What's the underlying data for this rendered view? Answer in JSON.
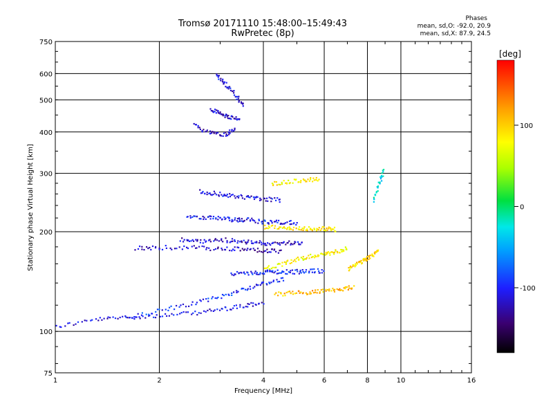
{
  "header": {
    "title_line1": "Tromsø 20171110 15:48:00–15:49:43",
    "title_line2": "RwPretec (8p)"
  },
  "phases": {
    "title": "Phases",
    "mode_o": "mean, sd,O: -92.0, 20.9",
    "mode_x": "mean, sd,X:  87.9, 24.5"
  },
  "colorbar": {
    "unit": "[deg]",
    "ticks": [
      "100",
      "0",
      "-100"
    ],
    "tick_values": [
      100,
      0,
      -100
    ],
    "range": [
      -180,
      180
    ]
  },
  "chart_data": {
    "type": "scatter",
    "title": "Tromsø 20171110 15:48:00–15:49:43",
    "subtitle": "RwPretec (8p)",
    "xlabel": "Frequency [MHz]",
    "ylabel": "Stationary phase Virtual Height [km]",
    "x_scale": "log",
    "y_scale": "log",
    "xlim": [
      1,
      16
    ],
    "ylim": [
      75,
      750
    ],
    "x_ticks": [
      "1",
      "2",
      "4",
      "6",
      "8",
      "10",
      "16"
    ],
    "x_tick_values": [
      1,
      2,
      4,
      6,
      8,
      10,
      16
    ],
    "y_ticks": [
      "750",
      "600",
      "500",
      "400",
      "300",
      "200",
      "100",
      "75"
    ],
    "y_tick_values": [
      750,
      600,
      500,
      400,
      300,
      200,
      100,
      75
    ],
    "grid": true,
    "color_by": "phase [deg]",
    "traces": [
      {
        "x": [
          1.0,
          1.3,
          1.6,
          2.0,
          2.5,
          3.0,
          3.5,
          4.0
        ],
        "y": [
          104,
          109,
          111,
          112,
          114,
          117,
          120,
          123
        ],
        "phase": -110
      },
      {
        "x": [
          1.6,
          2.0,
          2.5,
          3.0,
          3.5,
          4.0,
          4.6
        ],
        "y": [
          110,
          116,
          122,
          128,
          135,
          140,
          145
        ],
        "phase": -95
      },
      {
        "x": [
          1.7,
          2.0,
          2.5,
          3.0,
          3.5,
          4.0,
          4.5
        ],
        "y": [
          179,
          180,
          180,
          178,
          178,
          176,
          175
        ],
        "phase": -120
      },
      {
        "x": [
          2.3,
          2.6,
          3.0,
          3.4,
          3.8,
          4.2,
          4.7,
          5.2
        ],
        "y": [
          190,
          188,
          190,
          188,
          186,
          185,
          186,
          186
        ],
        "phase": -115
      },
      {
        "x": [
          2.4,
          2.7,
          3.0,
          3.3,
          3.6,
          4.0,
          4.5,
          5.0
        ],
        "y": [
          224,
          222,
          220,
          218,
          218,
          215,
          215,
          213
        ],
        "phase": -105
      },
      {
        "x": [
          2.6,
          2.9,
          3.2,
          3.6,
          4.0,
          4.5
        ],
        "y": [
          265,
          262,
          258,
          255,
          252,
          250
        ],
        "phase": -110
      },
      {
        "x": [
          2.9,
          3.1,
          3.3,
          3.5
        ],
        "y": [
          600,
          560,
          520,
          480
        ],
        "phase": -110
      },
      {
        "x": [
          2.5,
          2.8,
          3.1,
          3.3
        ],
        "y": [
          420,
          400,
          395,
          410
        ],
        "phase": -120
      },
      {
        "x": [
          2.8,
          3.0,
          3.2,
          3.4
        ],
        "y": [
          470,
          455,
          445,
          440
        ],
        "phase": -115
      },
      {
        "x": [
          3.2,
          3.6,
          4.0,
          4.4,
          4.9,
          5.4,
          6.0
        ],
        "y": [
          150,
          150,
          152,
          152,
          152,
          153,
          153
        ],
        "phase": -100
      },
      {
        "x": [
          4.0,
          4.5,
          5.0,
          5.5,
          6.0,
          6.5,
          7.0
        ],
        "y": [
          155,
          160,
          166,
          170,
          172,
          175,
          180
        ],
        "phase": 80
      },
      {
        "x": [
          4.0,
          4.5,
          5.0,
          5.5,
          6.0,
          6.5
        ],
        "y": [
          208,
          207,
          206,
          205,
          205,
          204
        ],
        "phase": 90
      },
      {
        "x": [
          4.2,
          4.7,
          5.3,
          5.8
        ],
        "y": [
          280,
          285,
          288,
          290
        ],
        "phase": 85
      },
      {
        "x": [
          4.3,
          4.8,
          5.4,
          6.0,
          6.7,
          7.3
        ],
        "y": [
          130,
          131,
          132,
          133,
          135,
          137
        ],
        "phase": 110
      },
      {
        "x": [
          7.0,
          7.4,
          7.8,
          8.2,
          8.6
        ],
        "y": [
          155,
          160,
          165,
          170,
          175
        ],
        "phase": 95
      },
      {
        "x": [
          8.3,
          8.6,
          8.9
        ],
        "y": [
          250,
          280,
          310
        ],
        "phase": -30
      }
    ]
  }
}
